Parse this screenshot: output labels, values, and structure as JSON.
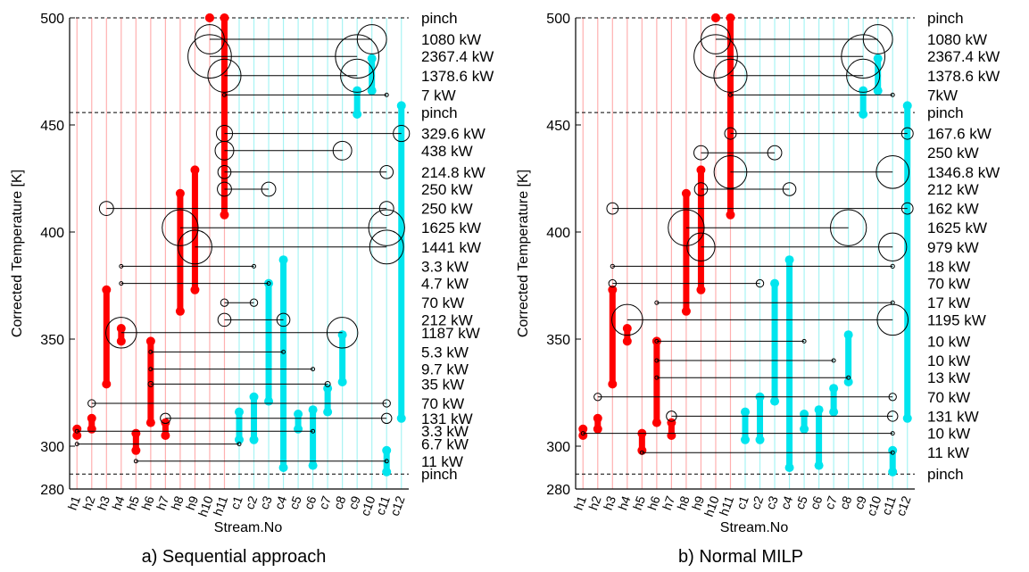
{
  "colors": {
    "hot": "#ff0000",
    "cold": "#00e5ee",
    "hot_grid": "#ffb0b0",
    "cold_grid": "#a8f4f4",
    "exchanger": "#000000"
  },
  "chart_data": [
    {
      "type": "heat-exchanger-network",
      "caption": "a) Sequential approach",
      "xlabel": "Stream.No",
      "ylabel": "Corrected Temperature [K]",
      "ylim": [
        280,
        500
      ],
      "yticks": [
        280,
        300,
        350,
        400,
        450,
        500
      ],
      "streams": [
        "h1",
        "h2",
        "h3",
        "h4",
        "h5",
        "h6",
        "h7",
        "h8",
        "h9",
        "h10",
        "h11",
        "c1",
        "c2",
        "c3",
        "c4",
        "c5",
        "c6",
        "c7",
        "c8",
        "c9",
        "c10",
        "c11",
        "c12"
      ],
      "pinch_temperatures": [
        500,
        455.8,
        287
      ],
      "pinch_label": "pinch",
      "hot_streams": [
        {
          "stream": "h1",
          "t_in": 308,
          "t_out": 305
        },
        {
          "stream": "h2",
          "t_in": 313,
          "t_out": 308
        },
        {
          "stream": "h3",
          "t_in": 373,
          "t_out": 329
        },
        {
          "stream": "h4",
          "t_in": 355,
          "t_out": 349
        },
        {
          "stream": "h5",
          "t_in": 306,
          "t_out": 298
        },
        {
          "stream": "h6",
          "t_in": 349,
          "t_out": 311
        },
        {
          "stream": "h7",
          "t_in": 311,
          "t_out": 305
        },
        {
          "stream": "h8",
          "t_in": 418,
          "t_out": 363
        },
        {
          "stream": "h9",
          "t_in": 429,
          "t_out": 373
        },
        {
          "stream": "h10",
          "t_in": 500,
          "t_out": 500
        },
        {
          "stream": "h11",
          "t_in": 500,
          "t_out": 408
        }
      ],
      "cold_streams": [
        {
          "stream": "c1",
          "t_in": 303,
          "t_out": 316
        },
        {
          "stream": "c2",
          "t_in": 303,
          "t_out": 323
        },
        {
          "stream": "c3",
          "t_in": 321,
          "t_out": 376
        },
        {
          "stream": "c4",
          "t_in": 290,
          "t_out": 387
        },
        {
          "stream": "c5",
          "t_in": 308,
          "t_out": 315
        },
        {
          "stream": "c6",
          "t_in": 291,
          "t_out": 317
        },
        {
          "stream": "c7",
          "t_in": 316,
          "t_out": 327
        },
        {
          "stream": "c8",
          "t_in": 330,
          "t_out": 352
        },
        {
          "stream": "c9",
          "t_in": 455,
          "t_out": 466
        },
        {
          "stream": "c10",
          "t_in": 466,
          "t_out": 481
        },
        {
          "stream": "c11",
          "t_in": 288,
          "t_out": 298
        },
        {
          "stream": "c12",
          "t_in": 313,
          "t_out": 459
        }
      ],
      "exchangers": [
        {
          "duty": "1080 kW",
          "T": 490,
          "hot": "h10",
          "cold": "c10",
          "size": 1080
        },
        {
          "duty": "2367.4 kW",
          "T": 482,
          "hot": "h10",
          "cold": "c9",
          "size": 2367.4
        },
        {
          "duty": "1378.6 kW",
          "T": 473,
          "hot": "h11",
          "cold": "c9",
          "size": 1378.6
        },
        {
          "duty": "7 kW",
          "T": 464,
          "hot": "h11",
          "cold": "c11",
          "size": 7
        },
        {
          "duty": "329.6 kW",
          "T": 446,
          "hot": "h11",
          "cold": "c12",
          "size": 329.6
        },
        {
          "duty": "438 kW",
          "T": 438,
          "hot": "h11",
          "cold": "c8",
          "size": 438
        },
        {
          "duty": "214.8 kW",
          "T": 428,
          "hot": "h11",
          "cold": "c11",
          "size": 214.8
        },
        {
          "duty": "250 kW",
          "T": 420,
          "hot": "h11",
          "cold": "c3",
          "size": 250
        },
        {
          "duty": "250 kW",
          "T": 411,
          "hot": "h3",
          "cold": "c11",
          "size": 250
        },
        {
          "duty": "1625 kW",
          "T": 402,
          "hot": "h8",
          "cold": "c11",
          "size": 1625
        },
        {
          "duty": "1441 kW",
          "T": 393,
          "hot": "h9",
          "cold": "c11",
          "size": 1441
        },
        {
          "duty": "3.3 kW",
          "T": 384,
          "hot": "h4",
          "cold": "c2",
          "size": 3.3
        },
        {
          "duty": "4.7 kW",
          "T": 376,
          "hot": "h4",
          "cold": "c3",
          "size": 4.7
        },
        {
          "duty": "70 kW",
          "T": 367,
          "hot": "h11",
          "cold": "c2",
          "size": 70
        },
        {
          "duty": "212 kW",
          "T": 359,
          "hot": "h11",
          "cold": "c4",
          "size": 212
        },
        {
          "duty": "1187 kW",
          "T": 353,
          "hot": "h4",
          "cold": "c8",
          "size": 1187
        },
        {
          "duty": "5.3 kW",
          "T": 344,
          "hot": "h6",
          "cold": "c4",
          "size": 5.3
        },
        {
          "duty": "9.7 kW",
          "T": 336,
          "hot": "h6",
          "cold": "c6",
          "size": 9.7
        },
        {
          "duty": "35 kW",
          "T": 329,
          "hot": "h6",
          "cold": "c7",
          "size": 35
        },
        {
          "duty": "70 kW",
          "T": 320,
          "hot": "h2",
          "cold": "c11",
          "size": 70
        },
        {
          "duty": "131 kW",
          "T": 313,
          "hot": "h7",
          "cold": "c11",
          "size": 131
        },
        {
          "duty": "3.3 kW",
          "T": 307,
          "hot": "h1",
          "cold": "c6",
          "size": 3.3
        },
        {
          "duty": "6.7 kW",
          "T": 301,
          "hot": "h1",
          "cold": "c1",
          "size": 6.7
        },
        {
          "duty": "11 kW",
          "T": 293,
          "hot": "h5",
          "cold": "c11",
          "size": 11
        }
      ]
    },
    {
      "type": "heat-exchanger-network",
      "caption": "b) Normal MILP",
      "xlabel": "Stream.No",
      "ylabel": "Corrected Temperature [K]",
      "ylim": [
        280,
        500
      ],
      "yticks": [
        280,
        300,
        350,
        400,
        450,
        500
      ],
      "streams": [
        "h1",
        "h2",
        "h3",
        "h4",
        "h5",
        "h6",
        "h7",
        "h8",
        "h9",
        "h10",
        "h11",
        "c1",
        "c2",
        "c3",
        "c4",
        "c5",
        "c6",
        "c7",
        "c8",
        "c9",
        "c10",
        "c11",
        "c12"
      ],
      "pinch_temperatures": [
        500,
        455.8,
        287
      ],
      "pinch_label": "pinch",
      "hot_streams": [
        {
          "stream": "h1",
          "t_in": 308,
          "t_out": 305
        },
        {
          "stream": "h2",
          "t_in": 313,
          "t_out": 308
        },
        {
          "stream": "h3",
          "t_in": 373,
          "t_out": 329
        },
        {
          "stream": "h4",
          "t_in": 355,
          "t_out": 349
        },
        {
          "stream": "h5",
          "t_in": 306,
          "t_out": 298
        },
        {
          "stream": "h6",
          "t_in": 349,
          "t_out": 311
        },
        {
          "stream": "h7",
          "t_in": 311,
          "t_out": 305
        },
        {
          "stream": "h8",
          "t_in": 418,
          "t_out": 363
        },
        {
          "stream": "h9",
          "t_in": 429,
          "t_out": 373
        },
        {
          "stream": "h10",
          "t_in": 500,
          "t_out": 500
        },
        {
          "stream": "h11",
          "t_in": 500,
          "t_out": 408
        }
      ],
      "cold_streams": [
        {
          "stream": "c1",
          "t_in": 303,
          "t_out": 316
        },
        {
          "stream": "c2",
          "t_in": 303,
          "t_out": 323
        },
        {
          "stream": "c3",
          "t_in": 321,
          "t_out": 376
        },
        {
          "stream": "c4",
          "t_in": 290,
          "t_out": 387
        },
        {
          "stream": "c5",
          "t_in": 308,
          "t_out": 315
        },
        {
          "stream": "c6",
          "t_in": 291,
          "t_out": 317
        },
        {
          "stream": "c7",
          "t_in": 316,
          "t_out": 327
        },
        {
          "stream": "c8",
          "t_in": 330,
          "t_out": 352
        },
        {
          "stream": "c9",
          "t_in": 455,
          "t_out": 466
        },
        {
          "stream": "c10",
          "t_in": 466,
          "t_out": 481
        },
        {
          "stream": "c11",
          "t_in": 288,
          "t_out": 298
        },
        {
          "stream": "c12",
          "t_in": 313,
          "t_out": 459
        }
      ],
      "exchangers": [
        {
          "duty": "1080 kW",
          "T": 490,
          "hot": "h10",
          "cold": "c10",
          "size": 1080
        },
        {
          "duty": "2367.4 kW",
          "T": 482,
          "hot": "h10",
          "cold": "c9",
          "size": 2367.4
        },
        {
          "duty": "1378.6 kW",
          "T": 473,
          "hot": "h11",
          "cold": "c9",
          "size": 1378.6
        },
        {
          "duty": "7kW",
          "T": 464,
          "hot": "h11",
          "cold": "c11",
          "size": 7
        },
        {
          "duty": "167.6 kW",
          "T": 446,
          "hot": "h11",
          "cold": "c12",
          "size": 167.6
        },
        {
          "duty": "250 kW",
          "T": 437,
          "hot": "h9",
          "cold": "c3",
          "size": 250
        },
        {
          "duty": "1346.8 kW",
          "T": 428,
          "hot": "h11",
          "cold": "c11",
          "size": 1346.8
        },
        {
          "duty": "212 kW",
          "T": 420,
          "hot": "h9",
          "cold": "c4",
          "size": 212
        },
        {
          "duty": "162 kW",
          "T": 411,
          "hot": "h3",
          "cold": "c12",
          "size": 162
        },
        {
          "duty": "1625 kW",
          "T": 402,
          "hot": "h8",
          "cold": "c8",
          "size": 1625
        },
        {
          "duty": "979 kW",
          "T": 393,
          "hot": "h9",
          "cold": "c11",
          "size": 979
        },
        {
          "duty": "18 kW",
          "T": 384,
          "hot": "h3",
          "cold": "c11",
          "size": 18
        },
        {
          "duty": "70 kW",
          "T": 376,
          "hot": "h3",
          "cold": "c2",
          "size": 70
        },
        {
          "duty": "17 kW",
          "T": 367,
          "hot": "h6",
          "cold": "c11",
          "size": 17
        },
        {
          "duty": "1195 kW",
          "T": 359,
          "hot": "h4",
          "cold": "c11",
          "size": 1195
        },
        {
          "duty": "10 kW",
          "T": 349,
          "hot": "h6",
          "cold": "c5",
          "size": 10
        },
        {
          "duty": "10 kW",
          "T": 340,
          "hot": "h6",
          "cold": "c7",
          "size": 10
        },
        {
          "duty": "13 kW",
          "T": 332,
          "hot": "h6",
          "cold": "c8",
          "size": 13
        },
        {
          "duty": "70 kW",
          "T": 323,
          "hot": "h2",
          "cold": "c11",
          "size": 70
        },
        {
          "duty": "131 kW",
          "T": 314,
          "hot": "h7",
          "cold": "c11",
          "size": 131
        },
        {
          "duty": "10 kW",
          "T": 306,
          "hot": "h1",
          "cold": "c11",
          "size": 10
        },
        {
          "duty": "11 kW",
          "T": 297,
          "hot": "h5",
          "cold": "c11",
          "size": 11
        }
      ]
    }
  ]
}
